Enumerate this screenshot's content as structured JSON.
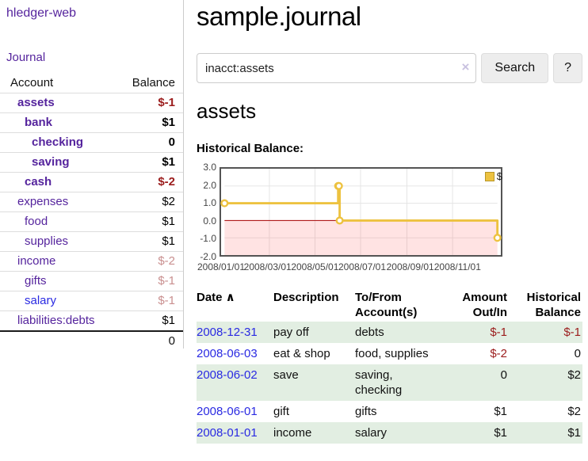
{
  "sidebar": {
    "app_title": "hledger-web",
    "journal_link": "Journal",
    "accounts_header": {
      "account": "Account",
      "balance": "Balance"
    },
    "accounts": [
      {
        "label": "assets",
        "level": 1,
        "bold": true,
        "link_color": "purple",
        "balance": "$-1",
        "tone": "neg"
      },
      {
        "label": "bank",
        "level": 2,
        "bold": true,
        "link_color": "purple",
        "balance": "$1",
        "tone": "normal"
      },
      {
        "label": "checking",
        "level": 3,
        "bold": true,
        "link_color": "purple",
        "balance": "0",
        "tone": "normal"
      },
      {
        "label": "saving",
        "level": 3,
        "bold": true,
        "link_color": "purple",
        "balance": "$1",
        "tone": "normal"
      },
      {
        "label": "cash",
        "level": 2,
        "bold": true,
        "link_color": "purple",
        "balance": "$-2",
        "tone": "neg"
      },
      {
        "label": "expenses",
        "level": 1,
        "bold": false,
        "link_color": "purple",
        "balance": "$2",
        "tone": "normal"
      },
      {
        "label": "food",
        "level": 2,
        "bold": false,
        "link_color": "purple",
        "balance": "$1",
        "tone": "normal"
      },
      {
        "label": "supplies",
        "level": 2,
        "bold": false,
        "link_color": "purple",
        "balance": "$1",
        "tone": "normal"
      },
      {
        "label": "income",
        "level": 1,
        "bold": false,
        "link_color": "purple",
        "balance": "$-2",
        "tone": "negfade"
      },
      {
        "label": "gifts",
        "level": 2,
        "bold": false,
        "link_color": "purple",
        "balance": "$-1",
        "tone": "negfade"
      },
      {
        "label": "salary",
        "level": 2,
        "bold": false,
        "link_color": "blue",
        "balance": "$-1",
        "tone": "negfade"
      },
      {
        "label": "liabilities:debts",
        "level": 1,
        "bold": false,
        "link_color": "purple",
        "balance": "$1",
        "tone": "normal"
      }
    ],
    "total": "0"
  },
  "main": {
    "title": "sample.journal",
    "search": {
      "value": "inacct:assets",
      "clear_icon": "×",
      "button_label": "Search",
      "help_label": "?"
    },
    "account_heading": "assets",
    "chart_label": "Historical Balance:",
    "table": {
      "headers": [
        {
          "label": "Date",
          "sort_icon": "∧",
          "align": "left"
        },
        {
          "label": "Description",
          "align": "left"
        },
        {
          "label": "To/From Account(s)",
          "align": "left"
        },
        {
          "label": "Amount Out/In",
          "align": "right"
        },
        {
          "label": "Historical Balance",
          "align": "right"
        }
      ],
      "rows": [
        {
          "date": "2008-12-31",
          "description": "pay off",
          "accounts": "debts",
          "amount": "$-1",
          "amount_tone": "neg",
          "balance": "$-1",
          "balance_tone": "neg",
          "striped": true
        },
        {
          "date": "2008-06-03",
          "description": "eat & shop",
          "accounts": "food, supplies",
          "amount": "$-2",
          "amount_tone": "neg",
          "balance": "0",
          "balance_tone": "normal",
          "striped": false
        },
        {
          "date": "2008-06-02",
          "description": "save",
          "accounts": "saving, checking",
          "amount": "0",
          "amount_tone": "normal",
          "balance": "$2",
          "balance_tone": "normal",
          "striped": true
        },
        {
          "date": "2008-06-01",
          "description": "gift",
          "accounts": "gifts",
          "amount": "$1",
          "amount_tone": "normal",
          "balance": "$2",
          "balance_tone": "normal",
          "striped": false
        },
        {
          "date": "2008-01-01",
          "description": "income",
          "accounts": "salary",
          "amount": "$1",
          "amount_tone": "normal",
          "balance": "$1",
          "balance_tone": "normal",
          "striped": true
        }
      ]
    }
  },
  "chart_data": {
    "type": "line",
    "interpolation": "step",
    "title": "Historical Balance",
    "series": [
      {
        "name": "$",
        "color": "#edc240",
        "points": [
          [
            "2008-01-01",
            1
          ],
          [
            "2008-06-01",
            2
          ],
          [
            "2008-06-02",
            2
          ],
          [
            "2008-06-03",
            0
          ],
          [
            "2008-12-31",
            -1
          ]
        ]
      }
    ],
    "xlim": [
      "2008-01-01",
      "2008-12-31"
    ],
    "ylim": [
      -2,
      3
    ],
    "x_ticks": [
      "2008/01/01",
      "2008/03/01",
      "2008/05/01",
      "2008/07/01",
      "2008/09/01",
      "2008/11/01"
    ],
    "y_ticks": [
      "3.0",
      "2.0",
      "1.0",
      "0.0",
      "-1.0",
      "-2.0"
    ],
    "grid": true,
    "legend_position": "top-right",
    "legend": "$"
  },
  "colors": {
    "accent_purple": "#55249d",
    "link_blue": "#2a2ae2",
    "negative_red": "#9b1c1c",
    "negative_faded": "#c98f8f",
    "row_stripe_green": "#e2eee2",
    "series_gold": "#edc240",
    "zero_line_red": "#a40000",
    "negative_area_fill": "rgba(255,70,70,0.15)",
    "grid_line": "#e4e4e4",
    "chart_border": "#545454"
  }
}
